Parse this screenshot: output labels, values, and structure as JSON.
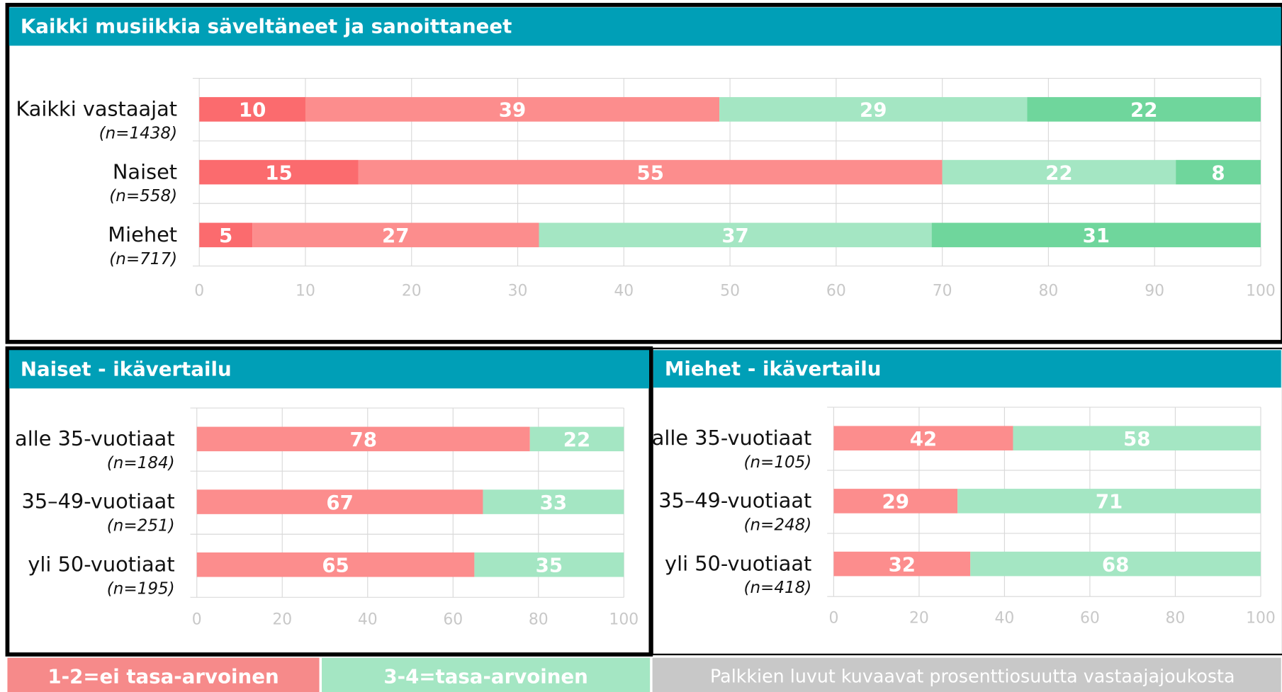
{
  "chart_data": [
    {
      "type": "bar",
      "orientation": "horizontal",
      "stacked": true,
      "title": "Kaikki musiikkia säveltäneet ja sanoittaneet",
      "categories": [
        "Kaikki vastaajat",
        "Naiset",
        "Miehet"
      ],
      "category_notes": [
        "(n=1438)",
        "(n=558)",
        "(n=717)"
      ],
      "series": [
        {
          "color": "#fb6b6e",
          "values": [
            10,
            15,
            5
          ]
        },
        {
          "color": "#fc8d8d",
          "values": [
            39,
            55,
            27
          ]
        },
        {
          "color": "#a4e6c3",
          "values": [
            29,
            22,
            37
          ]
        },
        {
          "color": "#6fd69c",
          "values": [
            22,
            8,
            31
          ]
        }
      ],
      "xlim": [
        0,
        100
      ],
      "xticks": [
        0,
        10,
        20,
        30,
        40,
        50,
        60,
        70,
        80,
        90,
        100
      ],
      "grid": true
    },
    {
      "type": "bar",
      "orientation": "horizontal",
      "stacked": true,
      "title": "Naiset - ikävertailu",
      "categories": [
        "alle 35-vuotiaat",
        "35–49-vuotiaat",
        "yli 50-vuotiaat"
      ],
      "category_notes": [
        "(n=184)",
        "(n=251)",
        "(n=195)"
      ],
      "series": [
        {
          "color": "#fc8d8d",
          "values": [
            78,
            67,
            65
          ]
        },
        {
          "color": "#a4e6c3",
          "values": [
            22,
            33,
            35
          ]
        }
      ],
      "xlim": [
        0,
        100
      ],
      "xticks": [
        0,
        20,
        40,
        60,
        80,
        100
      ],
      "grid": true
    },
    {
      "type": "bar",
      "orientation": "horizontal",
      "stacked": true,
      "title": "Miehet - ikävertailu",
      "categories": [
        "alle 35-vuotiaat",
        "35–49-vuotiaat",
        "yli 50-vuotiaat"
      ],
      "category_notes": [
        "(n=105)",
        "(n=248)",
        "(n=418)"
      ],
      "series": [
        {
          "color": "#fc8d8d",
          "values": [
            42,
            29,
            32
          ]
        },
        {
          "color": "#a4e6c3",
          "values": [
            58,
            71,
            68
          ]
        }
      ],
      "xlim": [
        0,
        100
      ],
      "xticks": [
        0,
        20,
        40,
        60,
        80,
        100
      ],
      "grid": true
    }
  ],
  "legend": {
    "items": [
      {
        "label": "1-2=ei tasa-arvoinen",
        "color": "#f68a8a"
      },
      {
        "label": "3-4=tasa-arvoinen",
        "color": "#a4e6c3"
      }
    ],
    "note": "Palkkien luvut kuvaavat prosenttiosuutta vastaajajoukosta"
  }
}
